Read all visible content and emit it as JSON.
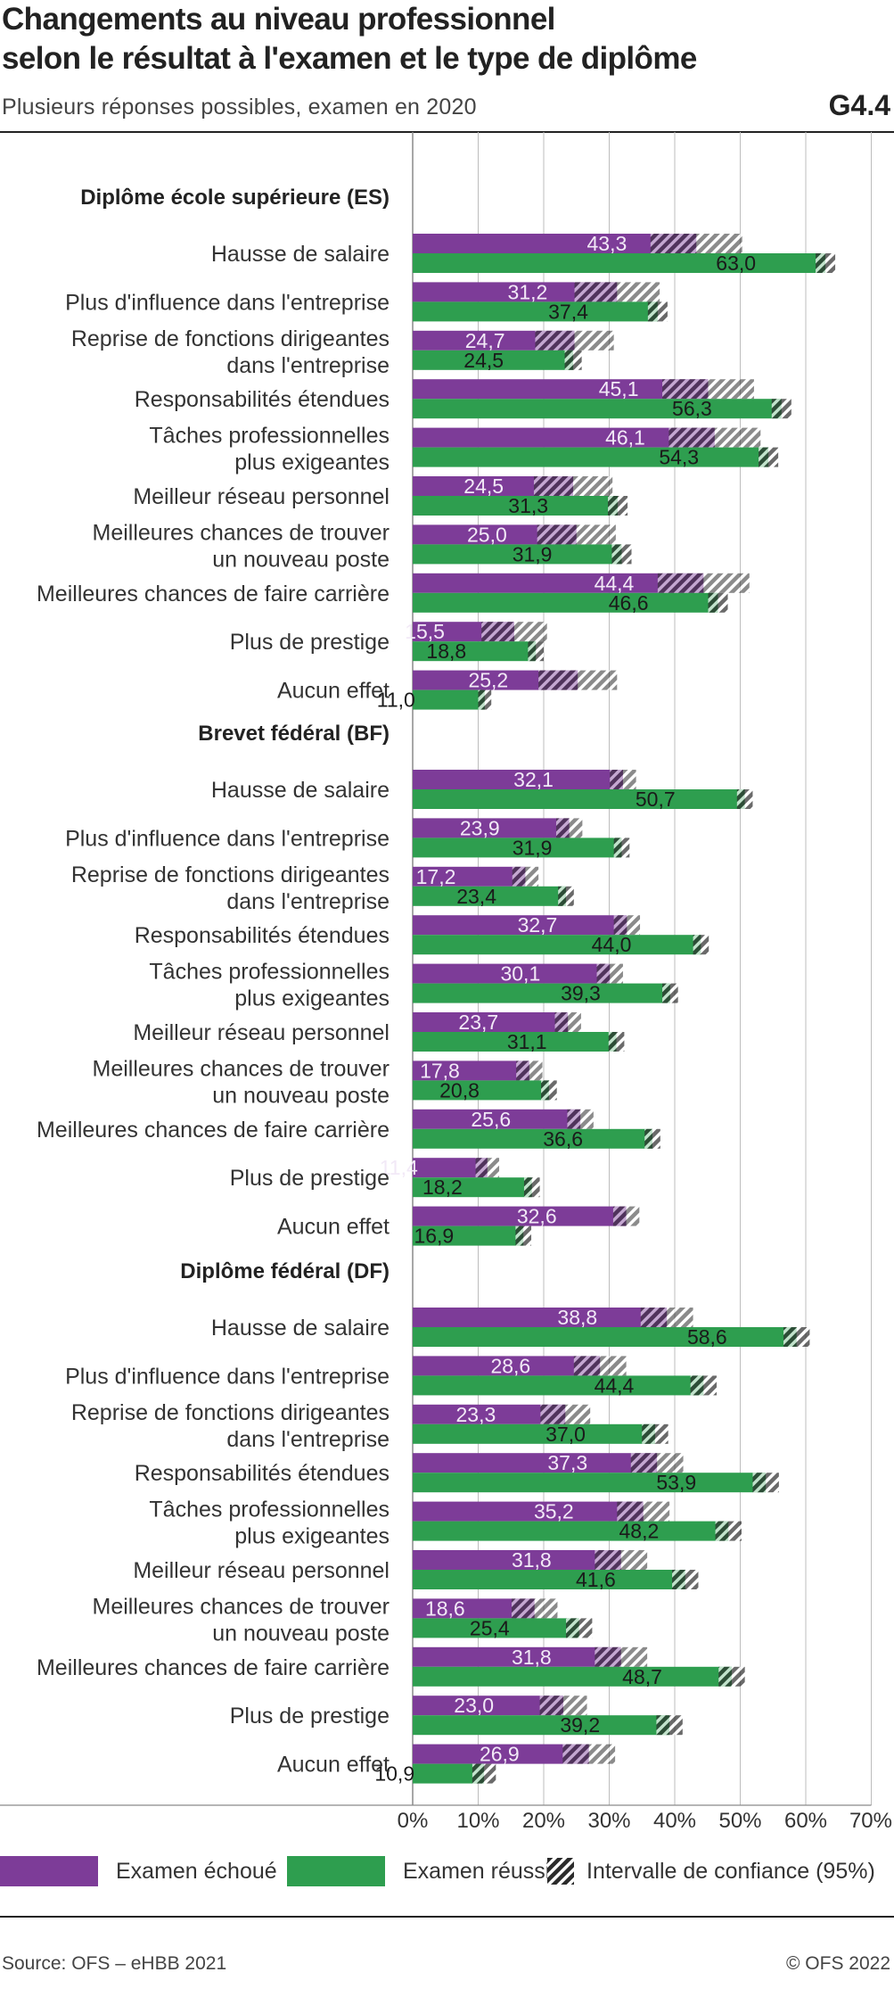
{
  "header": {
    "title_line1": "Changements au niveau professionnel",
    "title_line2": "selon le résultat à l'examen et le type de diplôme",
    "subtitle": "Plusieurs réponses possibles, examen en 2020",
    "code": "G4.4"
  },
  "colors": {
    "failed": "#7d3c98",
    "passed": "#2e9e4f",
    "gridline": "#bdbdbd",
    "text_on_failed": "#f2e9f7",
    "text_on_passed": "#1a1a1a"
  },
  "chart_data": {
    "type": "bar",
    "orientation": "horizontal",
    "xlim": [
      0,
      70
    ],
    "xticks": [
      "0%",
      "10%",
      "20%",
      "30%",
      "40%",
      "50%",
      "60%",
      "70%"
    ],
    "grid": true,
    "categories": [
      "Hausse de salaire",
      "Plus d'influence dans l'entreprise",
      "Reprise de fonctions dirigeantes dans l'entreprise",
      "Responsabilités étendues",
      "Tâches professionnelles plus exigeantes",
      "Meilleur réseau personnel",
      "Meilleures chances de trouver un nouveau poste",
      "Meilleures chances de faire carrière",
      "Plus de prestige",
      "Aucun effet"
    ],
    "category_lines": [
      [
        "Hausse de salaire"
      ],
      [
        "Plus d'influence dans l'entreprise"
      ],
      [
        "Reprise de fonctions dirigeantes",
        "dans l'entreprise"
      ],
      [
        "Responsabilités étendues"
      ],
      [
        "Tâches professionnelles",
        "plus exigeantes"
      ],
      [
        "Meilleur réseau personnel"
      ],
      [
        "Meilleures chances de trouver",
        "un nouveau poste"
      ],
      [
        "Meilleures chances de faire carrière"
      ],
      [
        "Plus de prestige"
      ],
      [
        "Aucun effet"
      ]
    ],
    "groups": [
      {
        "name": "Diplôme école supérieure (ES)",
        "failed": [
          43.3,
          31.2,
          24.7,
          45.1,
          46.1,
          24.5,
          25.0,
          44.4,
          15.5,
          25.2
        ],
        "failed_ci": [
          7.0,
          6.5,
          6.0,
          7.0,
          7.0,
          6.0,
          6.0,
          7.0,
          5.0,
          6.0
        ],
        "passed": [
          63.0,
          37.4,
          24.5,
          56.3,
          54.3,
          31.3,
          31.9,
          46.6,
          18.8,
          11.0
        ],
        "passed_ci": [
          1.5,
          1.5,
          1.3,
          1.5,
          1.5,
          1.5,
          1.5,
          1.5,
          1.2,
          1.0
        ]
      },
      {
        "name": "Brevet fédéral (BF)",
        "failed": [
          32.1,
          23.9,
          17.2,
          32.7,
          30.1,
          23.7,
          17.8,
          25.6,
          11.4,
          32.6
        ],
        "failed_ci": [
          2.0,
          2.0,
          2.0,
          2.0,
          2.0,
          2.0,
          2.0,
          2.0,
          1.8,
          2.0
        ],
        "passed": [
          50.7,
          31.9,
          23.4,
          44.0,
          39.3,
          31.1,
          20.8,
          36.6,
          18.2,
          16.9
        ],
        "passed_ci": [
          1.2,
          1.2,
          1.2,
          1.2,
          1.2,
          1.2,
          1.2,
          1.2,
          1.2,
          1.2
        ]
      },
      {
        "name": "Diplôme fédéral (DF)",
        "failed": [
          38.8,
          28.6,
          23.3,
          37.3,
          35.2,
          31.8,
          18.6,
          31.8,
          23.0,
          26.9
        ],
        "failed_ci": [
          4.0,
          4.0,
          3.8,
          4.0,
          4.0,
          4.0,
          3.5,
          4.0,
          3.6,
          4.0
        ],
        "passed": [
          58.6,
          44.4,
          37.0,
          53.9,
          48.2,
          41.6,
          25.4,
          48.7,
          39.2,
          10.9
        ],
        "passed_ci": [
          2.0,
          2.0,
          2.0,
          2.0,
          2.0,
          2.0,
          2.0,
          2.0,
          2.0,
          1.8
        ]
      }
    ],
    "series": [
      {
        "name": "Examen échoué",
        "color": "#7d3c98"
      },
      {
        "name": "Examen réussi",
        "color": "#2e9e4f"
      }
    ]
  },
  "legend": {
    "failed_label": "Examen échoué",
    "passed_label": "Examen réussi",
    "ci_label": "Intervalle de confiance (95%)"
  },
  "footer": {
    "source": "Source: OFS – eHBB 2021",
    "copyright": "© OFS 2022"
  }
}
